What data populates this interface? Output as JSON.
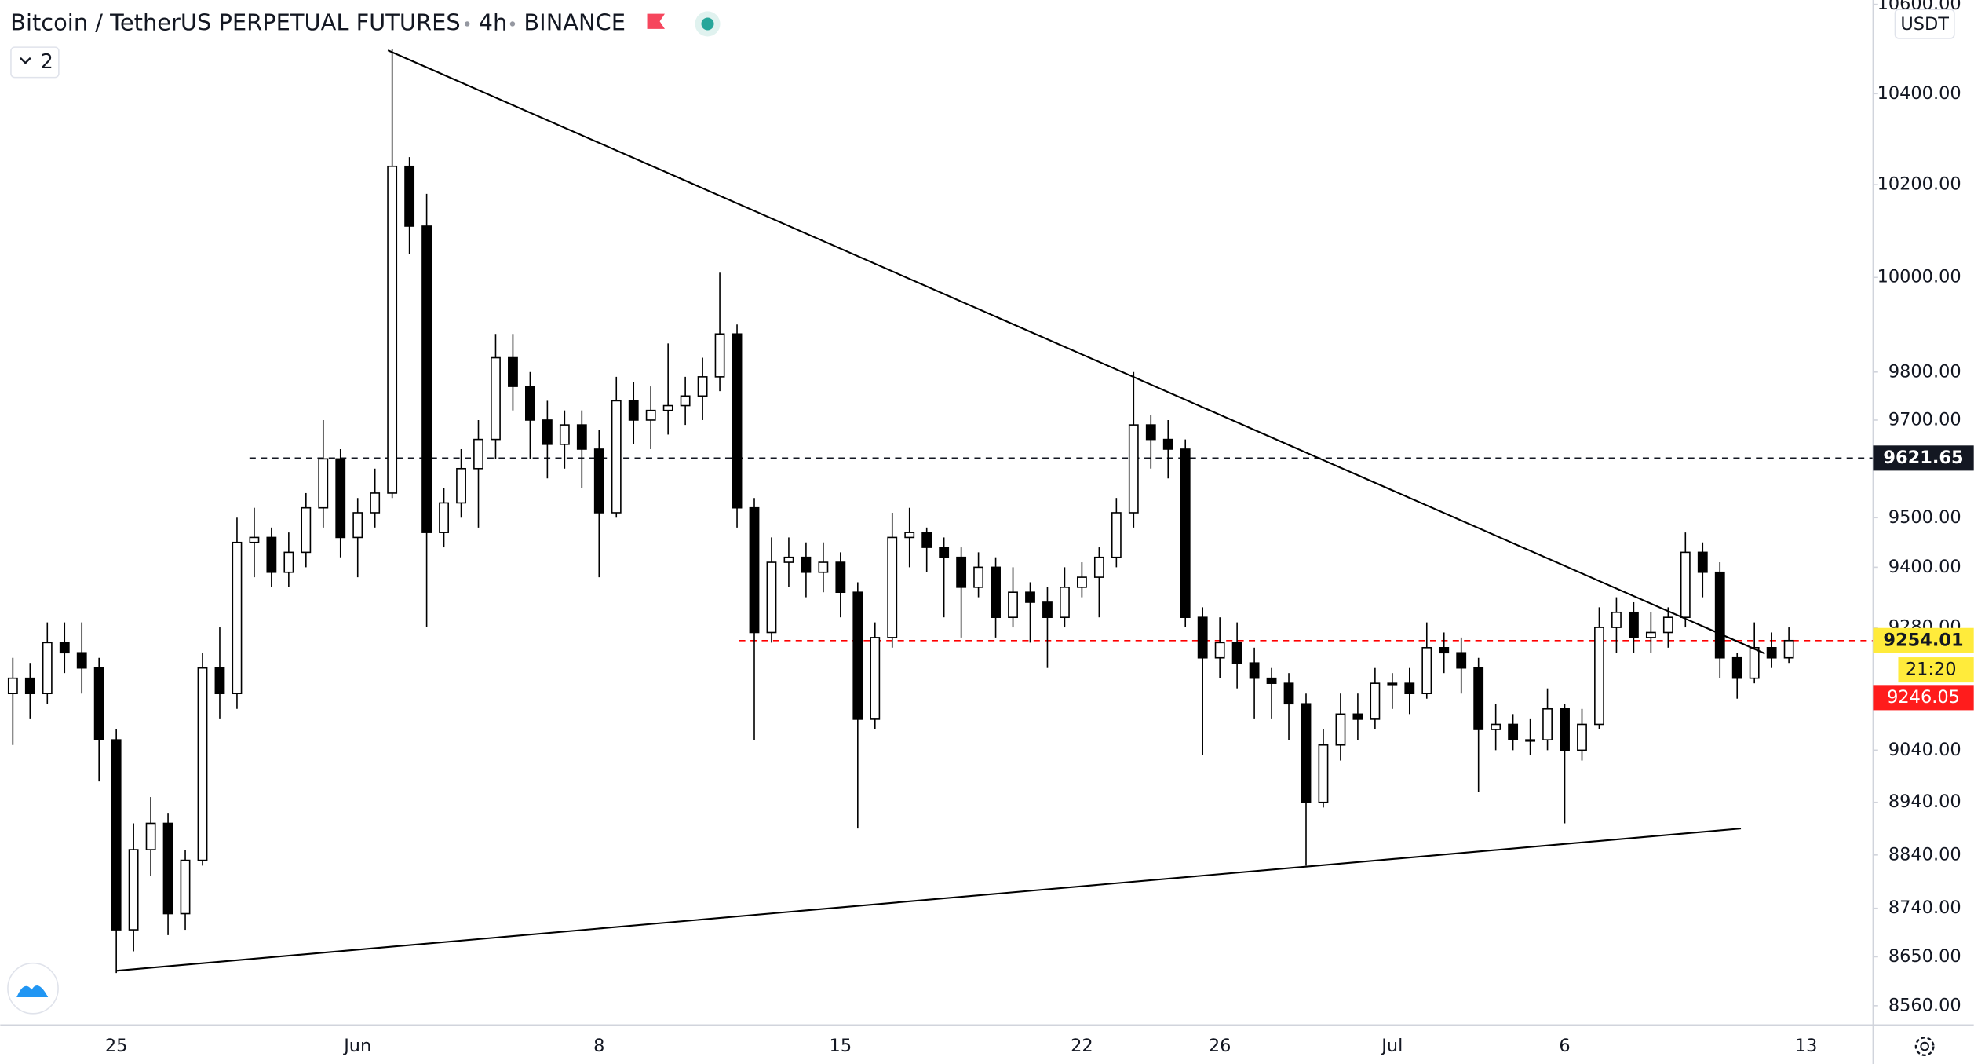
{
  "chart_data": {
    "type": "candlestick",
    "title": "Bitcoin / TetherUS PERPETUAL FUTURES",
    "interval": "4h",
    "exchange": "BINANCE",
    "indicator_count": 2,
    "currency": "USDT",
    "log_scale": true,
    "grid": false,
    "up_color": "#ffffff",
    "down_color": "#000000",
    "wick_color": "#000000",
    "ylim": [
      8525,
      10610
    ],
    "yticks": [
      {
        "value": 10600,
        "label": "10600.00"
      },
      {
        "value": 10400,
        "label": "10400.00"
      },
      {
        "value": 10200,
        "label": "10200.00"
      },
      {
        "value": 10000,
        "label": "10000.00"
      },
      {
        "value": 9800,
        "label": "9800.00"
      },
      {
        "value": 9700,
        "label": "9700.00"
      },
      {
        "value": 9500,
        "label": "9500.00"
      },
      {
        "value": 9400,
        "label": "9400.00"
      },
      {
        "value": 9280,
        "label": "9280.00"
      },
      {
        "value": 9040,
        "label": "9040.00"
      },
      {
        "value": 8940,
        "label": "8940.00"
      },
      {
        "value": 8840,
        "label": "8840.00"
      },
      {
        "value": 8740,
        "label": "8740.00"
      },
      {
        "value": 8650,
        "label": "8650.00"
      },
      {
        "value": 8560,
        "label": "8560.00"
      }
    ],
    "price_lines": [
      {
        "value": 9621.65,
        "color": "#131722",
        "text_color": "#ffffff"
      },
      {
        "value": 9254.01,
        "color": "#ffeb3b",
        "text_color": "#131722",
        "line_color": "#ff0000"
      }
    ],
    "countdown": "21:20",
    "secondary_price": 9246.05,
    "categories": [
      null,
      null,
      null,
      null,
      null,
      null,
      "25",
      null,
      null,
      null,
      null,
      null,
      null,
      null,
      null,
      null,
      null,
      null,
      null,
      null,
      "Jun",
      null,
      null,
      null,
      null,
      null,
      null,
      null,
      null,
      null,
      null,
      null,
      null,
      null,
      "8",
      null,
      null,
      null,
      null,
      null,
      null,
      null,
      null,
      null,
      null,
      null,
      null,
      null,
      "15",
      null,
      null,
      null,
      null,
      null,
      null,
      null,
      null,
      null,
      null,
      null,
      null,
      null,
      "22",
      null,
      null,
      null,
      null,
      null,
      null,
      null,
      "26",
      null,
      null,
      null,
      null,
      null,
      null,
      null,
      null,
      null,
      "Jul",
      null,
      null,
      null,
      null,
      null,
      null,
      null,
      null,
      null,
      "6",
      null,
      null,
      null,
      null,
      null,
      null,
      null,
      null,
      null,
      null,
      null,
      null,
      null,
      "13"
    ],
    "open": [
      9150,
      9180,
      9150,
      9250,
      9230,
      9200,
      9060,
      8700,
      8850,
      8900,
      8730,
      8830,
      9200,
      9150,
      9450,
      9460,
      9390,
      9430,
      9520,
      9620,
      9460,
      9510,
      9550,
      10240,
      10110,
      9470,
      9530,
      9600,
      9660,
      9830,
      9770,
      9700,
      9650,
      9690,
      9640,
      9510,
      9740,
      9700,
      9720,
      9730,
      9750,
      9790,
      9880,
      9520,
      9270,
      9410,
      9420,
      9390,
      9410,
      9350,
      9100,
      9260,
      9460,
      9470,
      9440,
      9420,
      9360,
      9400,
      9300,
      9350,
      9330,
      9300,
      9360,
      9380,
      9420,
      9510,
      9690,
      9660,
      9640,
      9300,
      9220,
      9250,
      9210,
      9180,
      9170,
      9130,
      8940,
      9050,
      9110,
      9100,
      9170,
      9170,
      9150,
      9240,
      9230,
      9200,
      9080,
      9090,
      9060,
      9060,
      9120,
      9040,
      9090,
      9280,
      9310,
      9260,
      9270,
      9300,
      9430,
      9390,
      9220,
      9180,
      9240,
      9220,
      null
    ],
    "high": [
      9220,
      9210,
      9290,
      9290,
      9290,
      9220,
      9080,
      8900,
      8950,
      8920,
      8850,
      9230,
      9280,
      9500,
      9520,
      9480,
      9470,
      9550,
      9700,
      9640,
      9540,
      9600,
      10500,
      10260,
      10180,
      9560,
      9640,
      9700,
      9880,
      9880,
      9800,
      9740,
      9720,
      9720,
      9680,
      9790,
      9780,
      9770,
      9860,
      9790,
      9830,
      10010,
      9900,
      9540,
      9460,
      9460,
      9450,
      9450,
      9430,
      9370,
      9290,
      9510,
      9520,
      9480,
      9460,
      9440,
      9430,
      9420,
      9400,
      9370,
      9360,
      9400,
      9410,
      9440,
      9540,
      9800,
      9710,
      9700,
      9660,
      9320,
      9300,
      9290,
      9240,
      9200,
      9190,
      9150,
      9080,
      9150,
      9150,
      9200,
      9190,
      9200,
      9290,
      9270,
      9260,
      9220,
      9130,
      9110,
      9100,
      9160,
      9130,
      9120,
      9320,
      9340,
      9330,
      9310,
      9320,
      9470,
      9450,
      9410,
      9230,
      9290,
      9270,
      9280,
      null
    ],
    "low": [
      9050,
      9100,
      9130,
      9190,
      9150,
      8980,
      8620,
      8660,
      8800,
      8690,
      8700,
      8820,
      9100,
      9120,
      9380,
      9360,
      9360,
      9400,
      9480,
      9420,
      9380,
      9480,
      9540,
      10050,
      9280,
      9440,
      9500,
      9480,
      9620,
      9720,
      9620,
      9580,
      9600,
      9560,
      9380,
      9500,
      9650,
      9640,
      9670,
      9690,
      9700,
      9760,
      9480,
      9060,
      9250,
      9360,
      9340,
      9350,
      9300,
      8890,
      9080,
      9240,
      9400,
      9390,
      9300,
      9260,
      9340,
      9260,
      9280,
      9250,
      9200,
      9280,
      9340,
      9300,
      9400,
      9480,
      9600,
      9580,
      9280,
      9030,
      9180,
      9160,
      9100,
      9100,
      9060,
      8820,
      8930,
      9020,
      9060,
      9080,
      9120,
      9110,
      9140,
      9190,
      9150,
      8960,
      9040,
      9040,
      9030,
      9040,
      8900,
      9020,
      9080,
      9230,
      9230,
      9230,
      9240,
      9280,
      9340,
      9180,
      9140,
      9170,
      9200,
      9210,
      null
    ],
    "close": [
      9180,
      9150,
      9250,
      9230,
      9200,
      9060,
      8700,
      8850,
      8900,
      8730,
      8830,
      9200,
      9150,
      9450,
      9460,
      9390,
      9430,
      9520,
      9620,
      9460,
      9510,
      9550,
      10240,
      10110,
      9470,
      9530,
      9600,
      9660,
      9830,
      9770,
      9700,
      9650,
      9690,
      9640,
      9510,
      9740,
      9700,
      9720,
      9730,
      9750,
      9790,
      9880,
      9520,
      9270,
      9410,
      9420,
      9390,
      9410,
      9350,
      9100,
      9260,
      9460,
      9470,
      9440,
      9420,
      9360,
      9400,
      9300,
      9350,
      9330,
      9300,
      9360,
      9380,
      9420,
      9510,
      9690,
      9660,
      9640,
      9300,
      9220,
      9250,
      9210,
      9180,
      9170,
      9130,
      8940,
      9050,
      9110,
      9100,
      9170,
      9170,
      9150,
      9240,
      9230,
      9200,
      9080,
      9090,
      9060,
      9060,
      9120,
      9040,
      9090,
      9280,
      9310,
      9260,
      9270,
      9300,
      9430,
      9390,
      9220,
      9180,
      9240,
      9220,
      9254.01,
      null
    ]
  }
}
